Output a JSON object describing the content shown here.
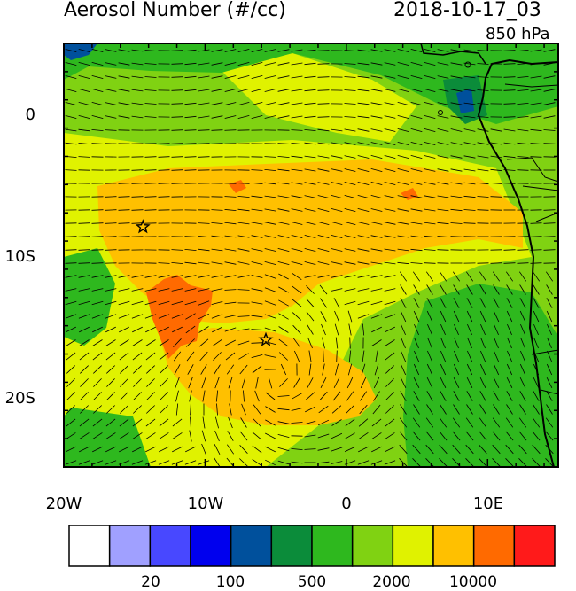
{
  "header": {
    "title": "Aerosol Number (#/cc)",
    "datetime": "2018-10-17_03",
    "level": "850 hPa"
  },
  "axes": {
    "lon_labels": [
      "20W",
      "10W",
      "0",
      "10E"
    ],
    "lat_labels": [
      "0",
      "10S",
      "20S"
    ],
    "lon_range": [
      -20,
      15
    ],
    "lat_range": [
      -25,
      5
    ]
  },
  "colorbar": {
    "colors": [
      "#ffffff",
      "#a0a0ff",
      "#4848ff",
      "#0000ee",
      "#00509c",
      "#0b8c3a",
      "#2eb81e",
      "#80d212",
      "#e0f200",
      "#ffc000",
      "#ff6a00",
      "#ff1a1a"
    ],
    "labels": [
      "20",
      "100",
      "500",
      "2000",
      "10000"
    ]
  },
  "markers": {
    "icon": "star-icon",
    "points": [
      {
        "lon": -14.4,
        "lat": -8.0
      },
      {
        "lon": -5.7,
        "lat": -16.0
      }
    ]
  }
}
